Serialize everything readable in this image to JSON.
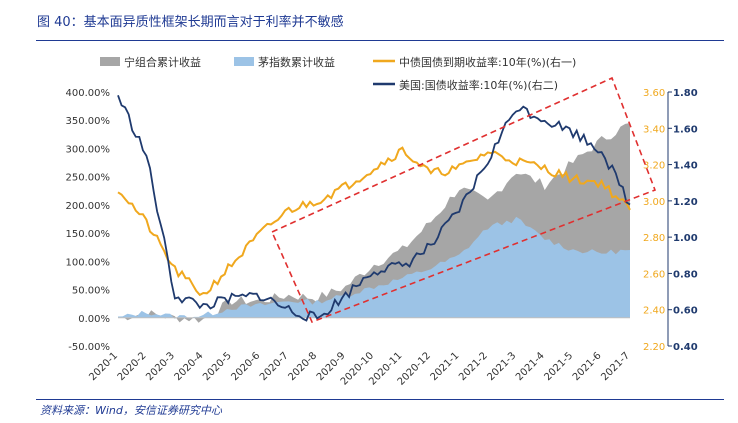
{
  "figure": {
    "title": "图 40：基本面异质性框架长期而言对于利率并不敏感",
    "source": "资料来源：Wind，安信证券研究中心"
  },
  "colors": {
    "title": "#1f3a93",
    "gray_area": "#a6a6a6",
    "blue_area": "#9cc3e6",
    "yield_cn": "#f0a81e",
    "yield_us": "#1f3a6e",
    "annotation": "#e03030",
    "right2_axis": "#1f3a6e"
  },
  "chart_data": {
    "type": "area",
    "categories": [
      "2020-1",
      "2020-2",
      "2020-3",
      "2020-4",
      "2020-5",
      "2020-6",
      "2020-7",
      "2020-8",
      "2020-9",
      "2020-10",
      "2020-11",
      "2020-12",
      "2021-1",
      "2021-2",
      "2021-3",
      "2021-4",
      "2021-5",
      "2021-6",
      "2021-7"
    ],
    "y_left": {
      "min": -50,
      "max": 400,
      "step": 50,
      "ticks": [
        "-50.00%",
        "0.00%",
        "50.00%",
        "100.00%",
        "150.00%",
        "200.00%",
        "250.00%",
        "300.00%",
        "350.00%",
        "400.00%"
      ]
    },
    "y_right1": {
      "min": 2.2,
      "max": 3.6,
      "step": 0.2,
      "ticks": [
        "2.20",
        "2.40",
        "2.60",
        "2.80",
        "3.00",
        "3.20",
        "3.40",
        "3.60"
      ],
      "color": "#f0a81e"
    },
    "y_right2": {
      "min": 0.4,
      "max": 1.8,
      "step": 0.2,
      "ticks": [
        "0.40",
        "0.60",
        "0.80",
        "1.00",
        "1.20",
        "1.40",
        "1.60",
        "1.80"
      ],
      "color": "#1f3a6e"
    },
    "series": [
      {
        "name": "宁组合累计收益",
        "type": "area",
        "axis": "left",
        "color": "#a6a6a6",
        "values": [
          0,
          8,
          0,
          -3,
          30,
          30,
          40,
          35,
          55,
          95,
          120,
          170,
          230,
          205,
          260,
          235,
          275,
          315,
          345
        ]
      },
      {
        "name": "茅指数累计收益",
        "type": "area",
        "axis": "left",
        "color": "#9cc3e6",
        "values": [
          0,
          10,
          2,
          4,
          18,
          22,
          30,
          28,
          40,
          55,
          70,
          88,
          110,
          160,
          175,
          140,
          120,
          115,
          120
        ]
      },
      {
        "name": "中债国债到期收益率:10年(%)(右一)",
        "type": "line",
        "axis": "right1",
        "color": "#f0a81e",
        "values": [
          3.07,
          2.88,
          2.62,
          2.48,
          2.65,
          2.82,
          2.95,
          3.0,
          3.08,
          3.18,
          3.28,
          3.15,
          3.18,
          3.27,
          3.22,
          3.18,
          3.12,
          3.1,
          2.95
        ]
      },
      {
        "name": "美国:国债收益率:10年(%)(右二)",
        "type": "line",
        "axis": "right2",
        "color": "#1f3a6e",
        "values": [
          1.78,
          1.45,
          0.68,
          0.62,
          0.66,
          0.68,
          0.6,
          0.55,
          0.68,
          0.82,
          0.84,
          0.95,
          1.15,
          1.42,
          1.72,
          1.65,
          1.58,
          1.48,
          1.18
        ]
      }
    ],
    "legend": {
      "placement": "top",
      "items": [
        "宁组合累计收益",
        "茅指数累计收益",
        "中债国债到期收益率:10年(%)(右一)",
        "美国:国债收益率:10年(%)(右二)"
      ]
    },
    "annotation": {
      "type": "dashed-parallelogram",
      "color": "#e03030",
      "description": "rising trend band"
    }
  }
}
